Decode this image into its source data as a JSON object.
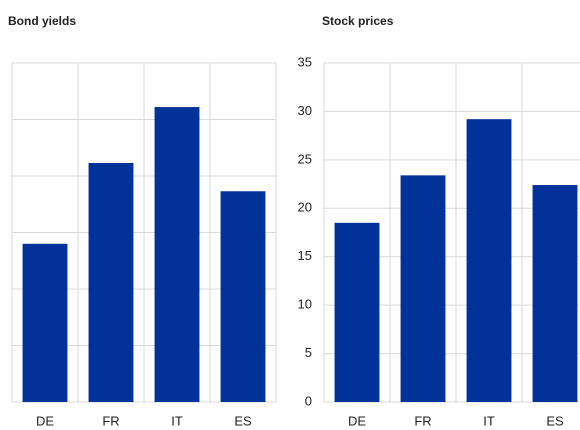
{
  "chart_data": [
    {
      "type": "bar",
      "title": "Bond yields",
      "categories": [
        "DE",
        "FR",
        "IT",
        "ES"
      ],
      "values": [
        2.8,
        4.23,
        5.22,
        3.73
      ],
      "color": "#003299",
      "ylim": [
        0,
        6
      ],
      "yticks": [
        0,
        1,
        2,
        3,
        4,
        5,
        6
      ],
      "grid": true,
      "tick_labels": false
    },
    {
      "type": "bar",
      "title": "Stock prices",
      "categories": [
        "DE",
        "FR",
        "IT",
        "ES"
      ],
      "values": [
        18.5,
        23.4,
        29.2,
        22.4
      ],
      "color": "#003299",
      "ylim": [
        0,
        35
      ],
      "yticks": [
        0,
        5,
        10,
        15,
        20,
        25,
        30,
        35
      ],
      "grid": true,
      "tick_labels": true
    }
  ]
}
